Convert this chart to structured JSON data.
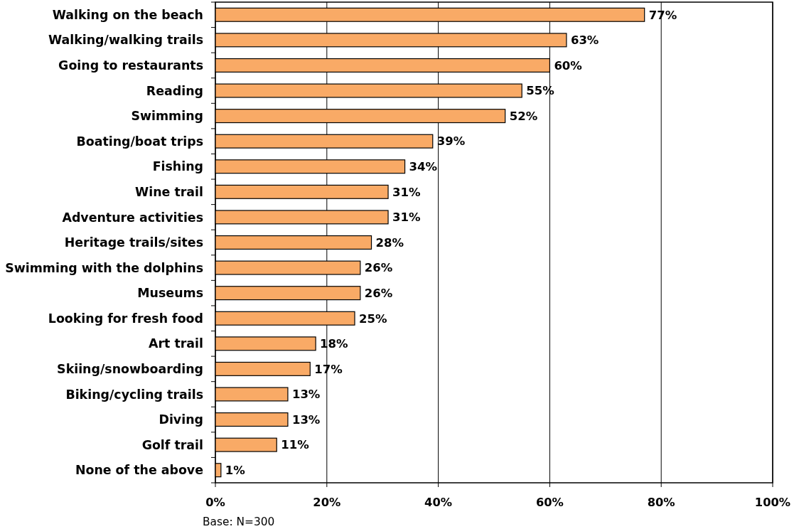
{
  "chart_data": {
    "type": "bar",
    "orientation": "horizontal",
    "categories": [
      "Walking on the beach",
      "Walking/walking trails",
      "Going to restaurants",
      "Reading",
      "Swimming",
      "Boating/boat trips",
      "Fishing",
      "Wine trail",
      "Adventure activities",
      "Heritage trails/sites",
      "Swimming with the dolphins",
      "Museums",
      "Looking for fresh food",
      "Art trail",
      "Skiing/snowboarding",
      "Biking/cycling trails",
      "Diving",
      "Golf trail",
      "None of the above"
    ],
    "values": [
      77,
      63,
      60,
      55,
      52,
      39,
      34,
      31,
      31,
      28,
      26,
      26,
      25,
      18,
      17,
      13,
      13,
      11,
      1
    ],
    "value_labels": [
      "77%",
      "63%",
      "60%",
      "55%",
      "52%",
      "39%",
      "34%",
      "31%",
      "31%",
      "28%",
      "26%",
      "26%",
      "25%",
      "18%",
      "17%",
      "13%",
      "13%",
      "11%",
      "1%"
    ],
    "color": "#f9aa66",
    "xlim": [
      0,
      100
    ],
    "xticks": [
      {
        "value": 0,
        "label": "0%"
      },
      {
        "value": 20,
        "label": "20%"
      },
      {
        "value": 40,
        "label": "40%"
      },
      {
        "value": 60,
        "label": "60%"
      },
      {
        "value": 80,
        "label": "80%"
      },
      {
        "value": 100,
        "label": "100%"
      }
    ],
    "grid": "x",
    "annotations": [
      "Base: N=300"
    ]
  }
}
